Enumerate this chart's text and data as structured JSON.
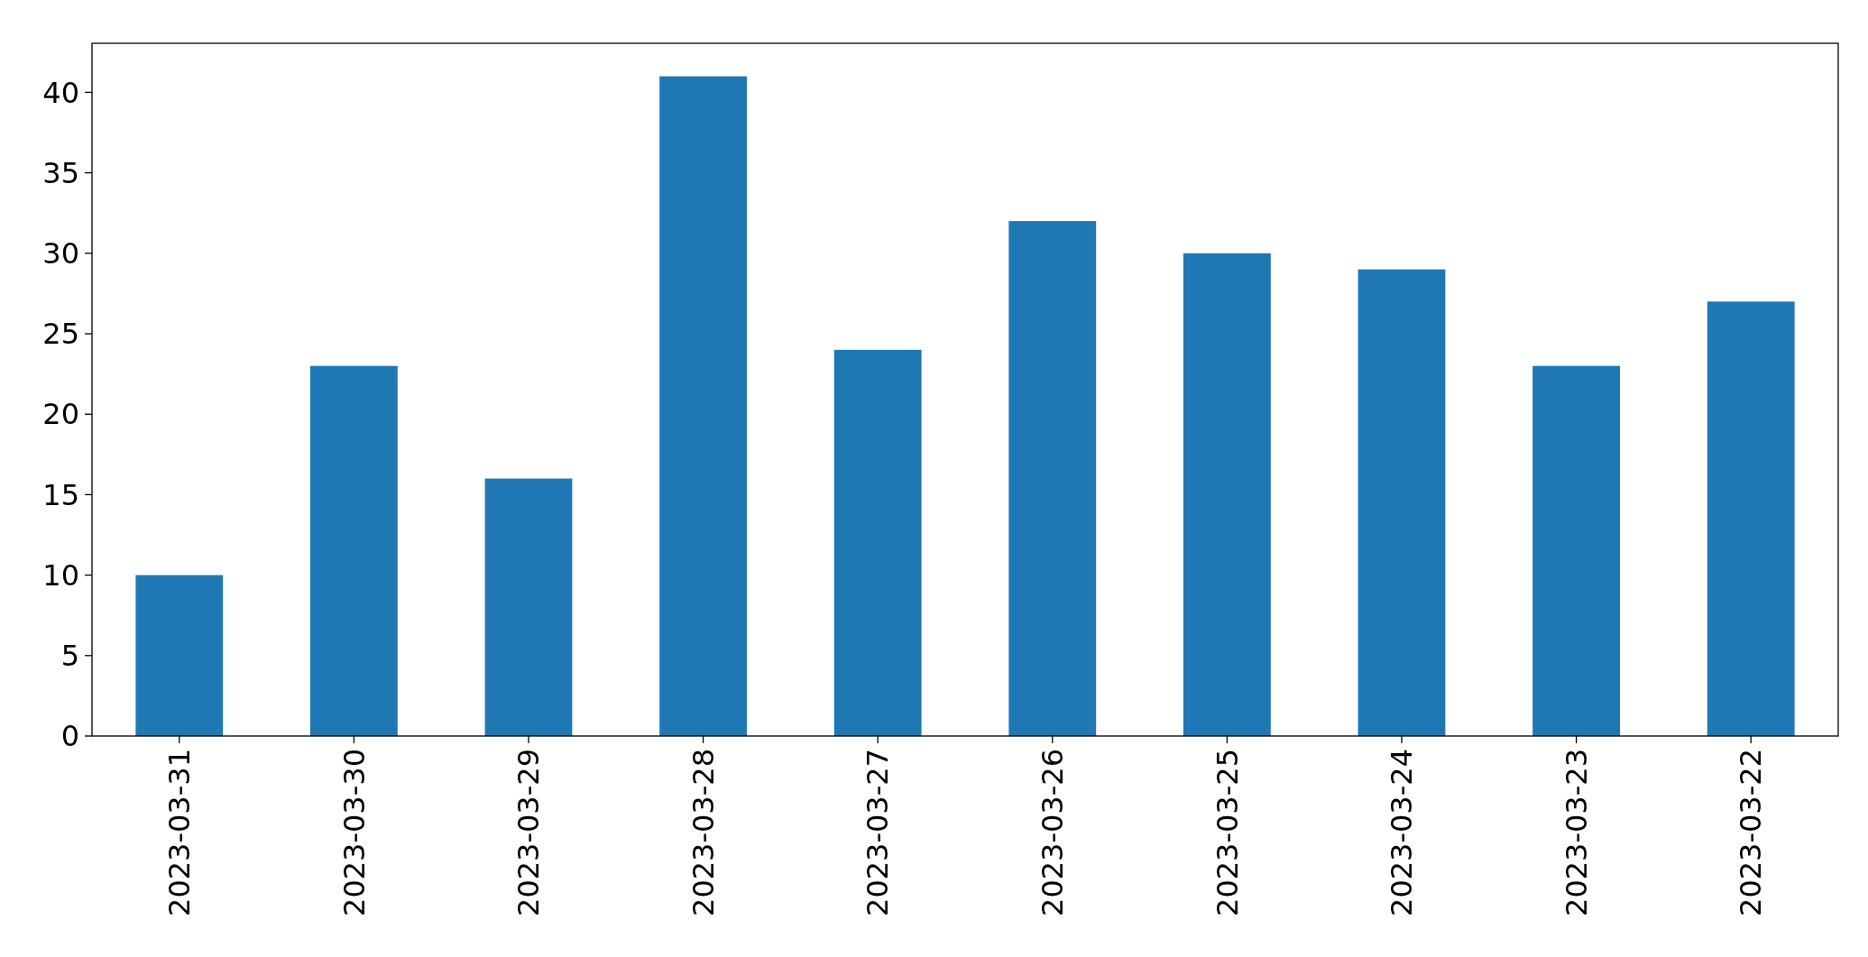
{
  "chart_data": {
    "type": "bar",
    "categories": [
      "2023-03-31",
      "2023-03-30",
      "2023-03-29",
      "2023-03-28",
      "2023-03-27",
      "2023-03-26",
      "2023-03-25",
      "2023-03-24",
      "2023-03-23",
      "2023-03-22"
    ],
    "values": [
      10,
      23,
      16,
      41,
      24,
      32,
      30,
      29,
      23,
      27
    ],
    "color": "#1f77b4",
    "ylim": [
      0,
      43.05
    ],
    "yticks": [
      0,
      5,
      10,
      15,
      20,
      25,
      30,
      35,
      40
    ]
  }
}
